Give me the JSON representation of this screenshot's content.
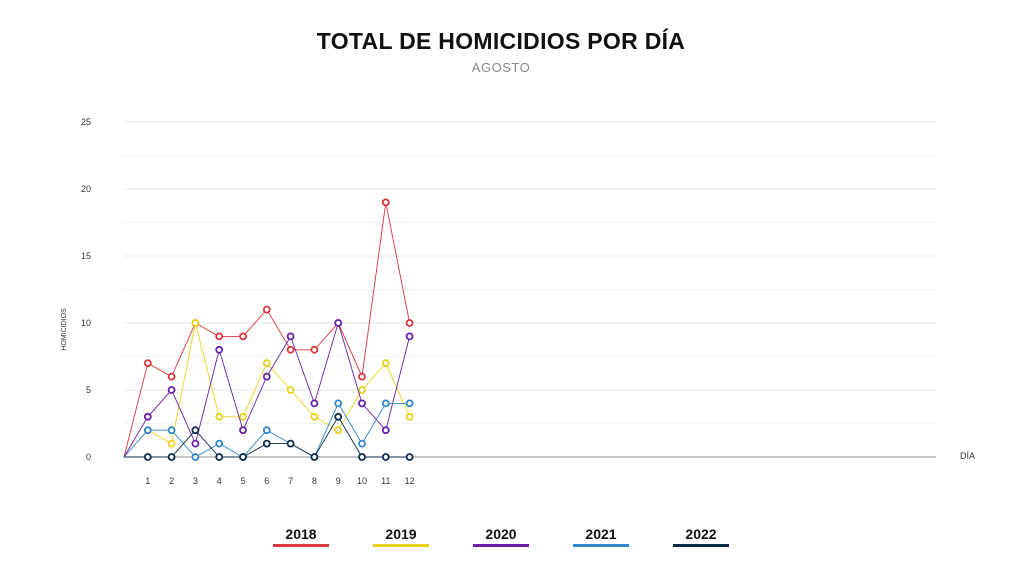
{
  "chart_data": {
    "type": "line",
    "title": "TOTAL DE HOMICIDIOS POR DÍA",
    "subtitle": "AGOSTO",
    "xlabel": "DÍA",
    "ylabel": "HOMICIDIOS",
    "ylim": [
      0,
      25
    ],
    "yticks": [
      0,
      5,
      10,
      15,
      20,
      25
    ],
    "x": [
      1,
      2,
      3,
      4,
      5,
      6,
      7,
      8,
      9,
      10,
      11,
      12
    ],
    "grid": true,
    "legend_position": "bottom",
    "series": [
      {
        "name": "2018",
        "color": "#d9363e",
        "values": [
          7,
          6,
          10,
          9,
          9,
          11,
          8,
          8,
          10,
          6,
          19,
          10
        ]
      },
      {
        "name": "2019",
        "color": "#e8d21d",
        "values": [
          2,
          1,
          10,
          3,
          3,
          7,
          5,
          3,
          2,
          5,
          7,
          3
        ]
      },
      {
        "name": "2020",
        "color": "#6a1fa8",
        "values": [
          3,
          5,
          1,
          8,
          2,
          6,
          9,
          4,
          10,
          4,
          2,
          9
        ]
      },
      {
        "name": "2021",
        "color": "#2f86cc",
        "values": [
          2,
          2,
          0,
          1,
          0,
          2,
          1,
          0,
          4,
          1,
          4,
          4
        ]
      },
      {
        "name": "2022",
        "color": "#0d2a4a",
        "values": [
          0,
          0,
          2,
          0,
          0,
          1,
          1,
          0,
          3,
          0,
          0,
          0
        ]
      }
    ]
  }
}
